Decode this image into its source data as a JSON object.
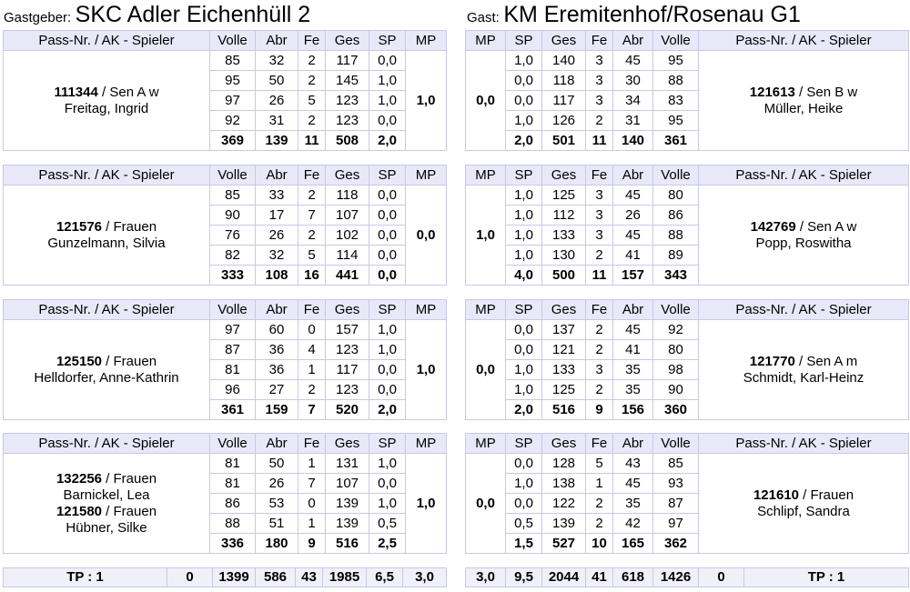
{
  "home": {
    "label": "Gastgeber:",
    "name": "SKC Adler Eichenhüll 2"
  },
  "guest": {
    "label": "Gast:",
    "name": "KM Eremitenhof/Rosenau G1"
  },
  "headers": {
    "player": "Pass-Nr. / AK - Spieler",
    "volle": "Volle",
    "abr": "Abr",
    "fe": "Fe",
    "ges": "Ges",
    "sp": "SP",
    "mp": "MP"
  },
  "games": [
    {
      "home": {
        "players": [
          {
            "num": "111344",
            "ak": " / Sen A w",
            "name": "Freitag, Ingrid"
          }
        ],
        "rows": [
          [
            "85",
            "32",
            "2",
            "117",
            "0,0"
          ],
          [
            "95",
            "50",
            "2",
            "145",
            "1,0"
          ],
          [
            "97",
            "26",
            "5",
            "123",
            "1,0"
          ],
          [
            "92",
            "31",
            "2",
            "123",
            "0,0"
          ]
        ],
        "total": [
          "369",
          "139",
          "11",
          "508",
          "2,0"
        ],
        "mp": "1,0"
      },
      "guest": {
        "players": [
          {
            "num": "121613",
            "ak": " / Sen B w",
            "name": "Müller, Heike"
          }
        ],
        "rows": [
          [
            "1,0",
            "140",
            "3",
            "45",
            "95"
          ],
          [
            "0,0",
            "118",
            "3",
            "30",
            "88"
          ],
          [
            "0,0",
            "117",
            "3",
            "34",
            "83"
          ],
          [
            "1,0",
            "126",
            "2",
            "31",
            "95"
          ]
        ],
        "total": [
          "2,0",
          "501",
          "11",
          "140",
          "361"
        ],
        "mp": "0,0"
      }
    },
    {
      "home": {
        "players": [
          {
            "num": "121576",
            "ak": " / Frauen",
            "name": "Gunzelmann, Silvia"
          }
        ],
        "rows": [
          [
            "85",
            "33",
            "2",
            "118",
            "0,0"
          ],
          [
            "90",
            "17",
            "7",
            "107",
            "0,0"
          ],
          [
            "76",
            "26",
            "2",
            "102",
            "0,0"
          ],
          [
            "82",
            "32",
            "5",
            "114",
            "0,0"
          ]
        ],
        "total": [
          "333",
          "108",
          "16",
          "441",
          "0,0"
        ],
        "mp": "0,0"
      },
      "guest": {
        "players": [
          {
            "num": "142769",
            "ak": " / Sen A w",
            "name": "Popp, Roswitha"
          }
        ],
        "rows": [
          [
            "1,0",
            "125",
            "3",
            "45",
            "80"
          ],
          [
            "1,0",
            "112",
            "3",
            "26",
            "86"
          ],
          [
            "1,0",
            "133",
            "3",
            "45",
            "88"
          ],
          [
            "1,0",
            "130",
            "2",
            "41",
            "89"
          ]
        ],
        "total": [
          "4,0",
          "500",
          "11",
          "157",
          "343"
        ],
        "mp": "1,0"
      }
    },
    {
      "home": {
        "players": [
          {
            "num": "125150",
            "ak": " / Frauen",
            "name": "Helldorfer, Anne-Kathrin"
          }
        ],
        "rows": [
          [
            "97",
            "60",
            "0",
            "157",
            "1,0"
          ],
          [
            "87",
            "36",
            "4",
            "123",
            "1,0"
          ],
          [
            "81",
            "36",
            "1",
            "117",
            "0,0"
          ],
          [
            "96",
            "27",
            "2",
            "123",
            "0,0"
          ]
        ],
        "total": [
          "361",
          "159",
          "7",
          "520",
          "2,0"
        ],
        "mp": "1,0"
      },
      "guest": {
        "players": [
          {
            "num": "121770",
            "ak": " / Sen A m",
            "name": "Schmidt, Karl-Heinz"
          }
        ],
        "rows": [
          [
            "0,0",
            "137",
            "2",
            "45",
            "92"
          ],
          [
            "0,0",
            "121",
            "2",
            "41",
            "80"
          ],
          [
            "1,0",
            "133",
            "3",
            "35",
            "98"
          ],
          [
            "1,0",
            "125",
            "2",
            "35",
            "90"
          ]
        ],
        "total": [
          "2,0",
          "516",
          "9",
          "156",
          "360"
        ],
        "mp": "0,0"
      }
    },
    {
      "home": {
        "players": [
          {
            "num": "132256",
            "ak": " / Frauen",
            "name": "Barnickel, Lea"
          },
          {
            "num": "121580",
            "ak": " / Frauen",
            "name": "Hübner, Silke"
          }
        ],
        "rows": [
          [
            "81",
            "50",
            "1",
            "131",
            "1,0"
          ],
          [
            "81",
            "26",
            "7",
            "107",
            "0,0"
          ],
          [
            "86",
            "53",
            "0",
            "139",
            "1,0"
          ],
          [
            "88",
            "51",
            "1",
            "139",
            "0,5"
          ]
        ],
        "total": [
          "336",
          "180",
          "9",
          "516",
          "2,5"
        ],
        "mp": "1,0"
      },
      "guest": {
        "players": [
          {
            "num": "121610",
            "ak": " / Frauen",
            "name": "Schlipf, Sandra"
          }
        ],
        "rows": [
          [
            "0,0",
            "128",
            "5",
            "43",
            "85"
          ],
          [
            "1,0",
            "138",
            "1",
            "45",
            "93"
          ],
          [
            "0,0",
            "122",
            "2",
            "35",
            "87"
          ],
          [
            "0,5",
            "139",
            "2",
            "42",
            "97"
          ]
        ],
        "total": [
          "1,5",
          "527",
          "10",
          "165",
          "362"
        ],
        "mp": "0,0"
      }
    }
  ],
  "totals": {
    "home": {
      "tp": "TP : 1",
      "zero": "0",
      "volle": "1399",
      "abr": "586",
      "fe": "43",
      "ges": "1985",
      "sp": "6,5",
      "mp": "3,0"
    },
    "guest": {
      "mp": "3,0",
      "sp": "9,5",
      "ges": "2044",
      "fe": "41",
      "abr": "618",
      "volle": "1426",
      "zero": "0",
      "tp": "TP : 1"
    }
  }
}
